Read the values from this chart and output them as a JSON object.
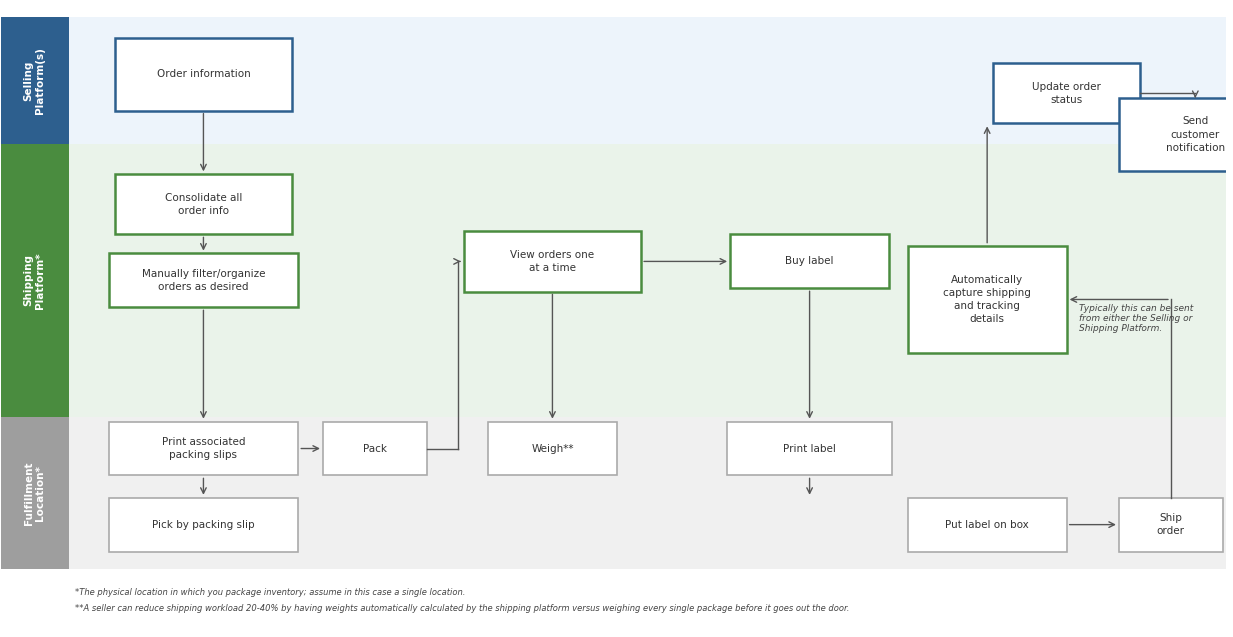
{
  "fig_width": 12.33,
  "fig_height": 6.37,
  "bg_color": "#ffffff",
  "lane_colors": {
    "selling": "#2d5f8e",
    "shipping": "#4a8c3f",
    "fulfillment": "#9e9e9e"
  },
  "blue_box_color": "#2d5f8e",
  "green_box_color": "#4a8c3f",
  "gray_box_color": "#aaaaaa",
  "lane_labels": {
    "selling": "Selling\nPlatform(s)",
    "shipping": "Shipping\nPlatform*",
    "fulfillment": "Fulfillment\nLocation*"
  },
  "selling_bg": "#edf4fb",
  "shipping_bg": "#eaf3ea",
  "fulfillment_bg": "#f0f0f0",
  "arrow_color": "#555555",
  "footnote1": "*The physical location in which you package inventory; assume in this case a single location.",
  "footnote2": "**A seller can reduce shipping workload 20-40% by having weights automatically calculated by the shipping platform versus weighing every single package before it goes out the door.",
  "annotation_text": "Typically this can be sent\nfrom either the Selling or\nShipping Platform."
}
